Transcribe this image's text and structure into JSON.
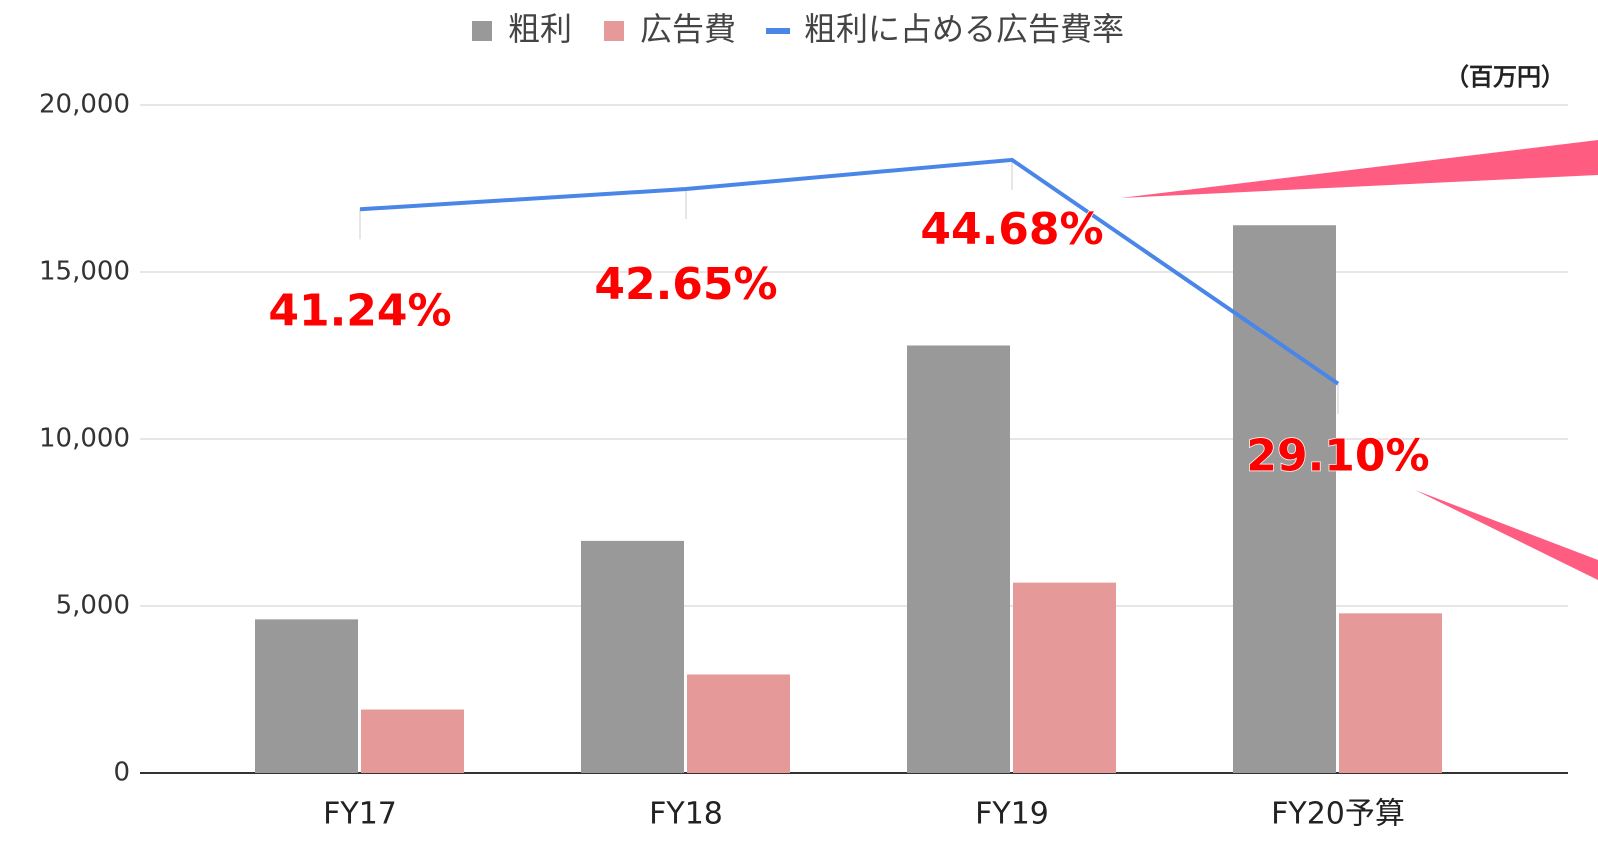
{
  "chart_data": {
    "type": "bar",
    "unit_note": "（百万円）",
    "categories": [
      "FY17",
      "FY18",
      "FY19",
      "FY20予算"
    ],
    "series": [
      {
        "name": "粗利",
        "color": "#999999",
        "values": [
          4600,
          6950,
          12800,
          16400
        ]
      },
      {
        "name": "広告費",
        "color": "#e69999",
        "values": [
          1900,
          2950,
          5700,
          4780
        ]
      },
      {
        "name": "粗利に占める広告費率",
        "type": "line",
        "axis": "y2",
        "color": "#4a86e8",
        "values": [
          41.24,
          42.65,
          44.68,
          29.1
        ],
        "value_labels": [
          "41.24%",
          "42.65%",
          "44.68%",
          "29.10%"
        ],
        "label_color": "#ff0000"
      }
    ],
    "ylim": [
      0,
      20000
    ],
    "yticks": [
      {
        "value": 0,
        "label": "0"
      },
      {
        "value": 5000,
        "label": "5,000"
      },
      {
        "value": 10000,
        "label": "10,000"
      },
      {
        "value": 15000,
        "label": "15,000"
      },
      {
        "value": 20000,
        "label": "20,000"
      }
    ],
    "y2lim": [
      2,
      48.5
    ],
    "grid": true,
    "legend": "top"
  }
}
